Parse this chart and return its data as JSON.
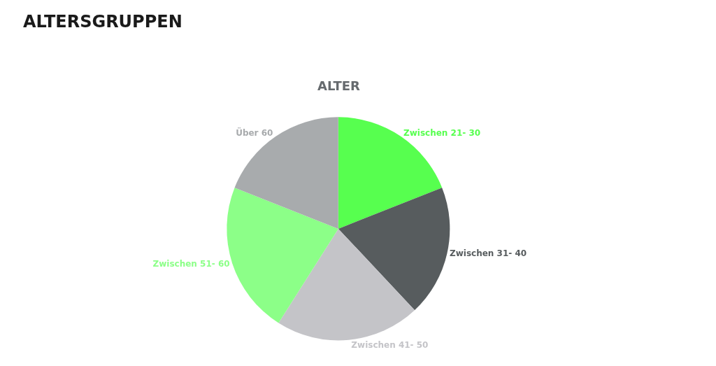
{
  "chart_data": {
    "type": "pie",
    "title": "ALTERSGRUPPEN",
    "subtitle": "ALTER",
    "categories": [
      "Zwischen 21- 30",
      "Zwischen 31- 40",
      "Zwischen 41- 50",
      "Zwischen 51- 60",
      "Über 60"
    ],
    "values": [
      19,
      19,
      21,
      22,
      19
    ],
    "colors": [
      "#57ff4f",
      "#575c5e",
      "#c4c4c8",
      "#8cff88",
      "#a8abad"
    ]
  }
}
